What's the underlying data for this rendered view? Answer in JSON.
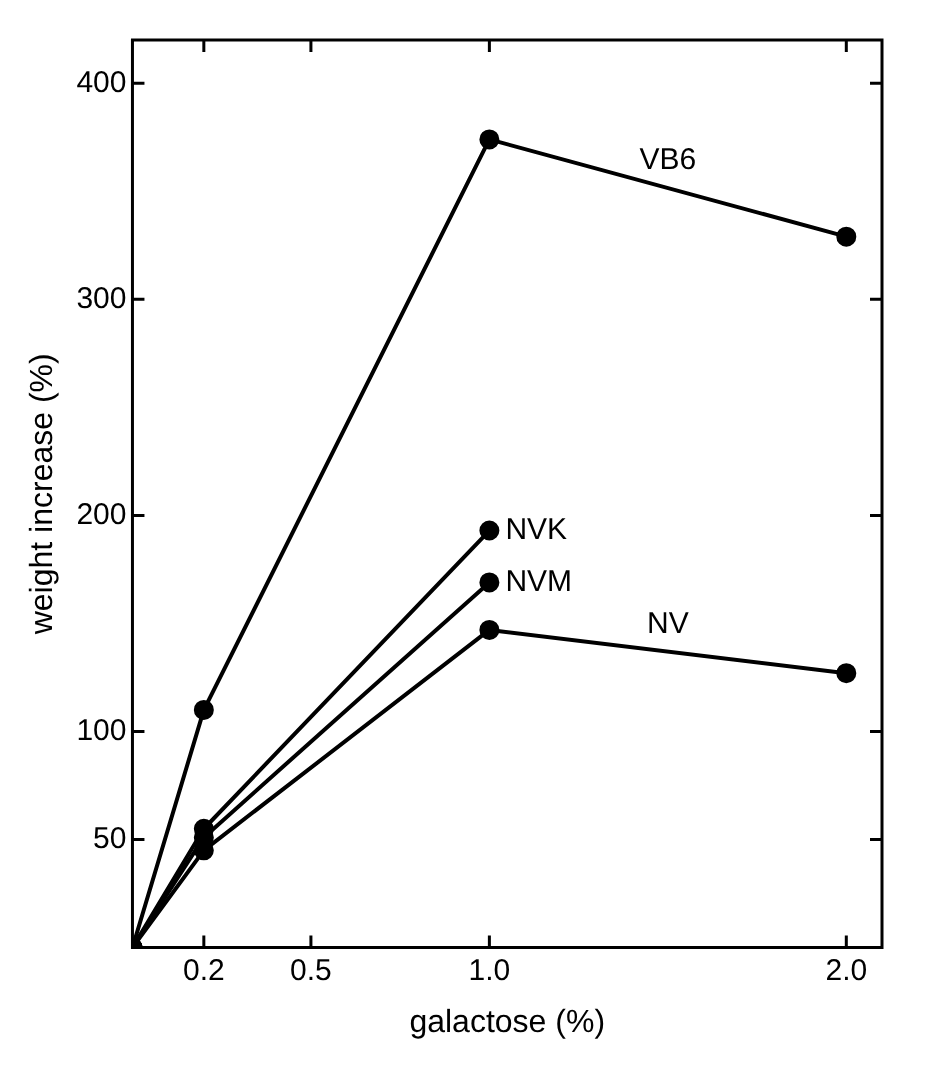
{
  "chart_data": {
    "type": "line",
    "xlabel": "galactose (%)",
    "ylabel": "weight increase (%)",
    "xlim": [
      0,
      2.1
    ],
    "xticks": [
      0.2,
      0.5,
      {
        "value": 1,
        "label": "1.0"
      },
      {
        "value": 2,
        "label": "2.0"
      }
    ],
    "ylim": [
      0,
      420
    ],
    "yticks": [
      50,
      100,
      200,
      300,
      400
    ],
    "grid": false,
    "legend": false,
    "marker": "circle",
    "line_style": "solid",
    "series": [
      {
        "name": "VB6",
        "color": "#000000",
        "x": [
          0,
          0.2,
          1,
          2
        ],
        "values": [
          0,
          110,
          374,
          329
        ]
      },
      {
        "name": "NVK",
        "color": "#000000",
        "x": [
          0,
          0.2,
          1
        ],
        "values": [
          0,
          55,
          193
        ]
      },
      {
        "name": "NVM",
        "color": "#000000",
        "x": [
          0,
          0.2,
          1
        ],
        "values": [
          0,
          51,
          169
        ]
      },
      {
        "name": "NV",
        "color": "#000000",
        "x": [
          0,
          0.2,
          1,
          2
        ],
        "values": [
          0,
          45,
          147,
          127
        ]
      }
    ]
  }
}
